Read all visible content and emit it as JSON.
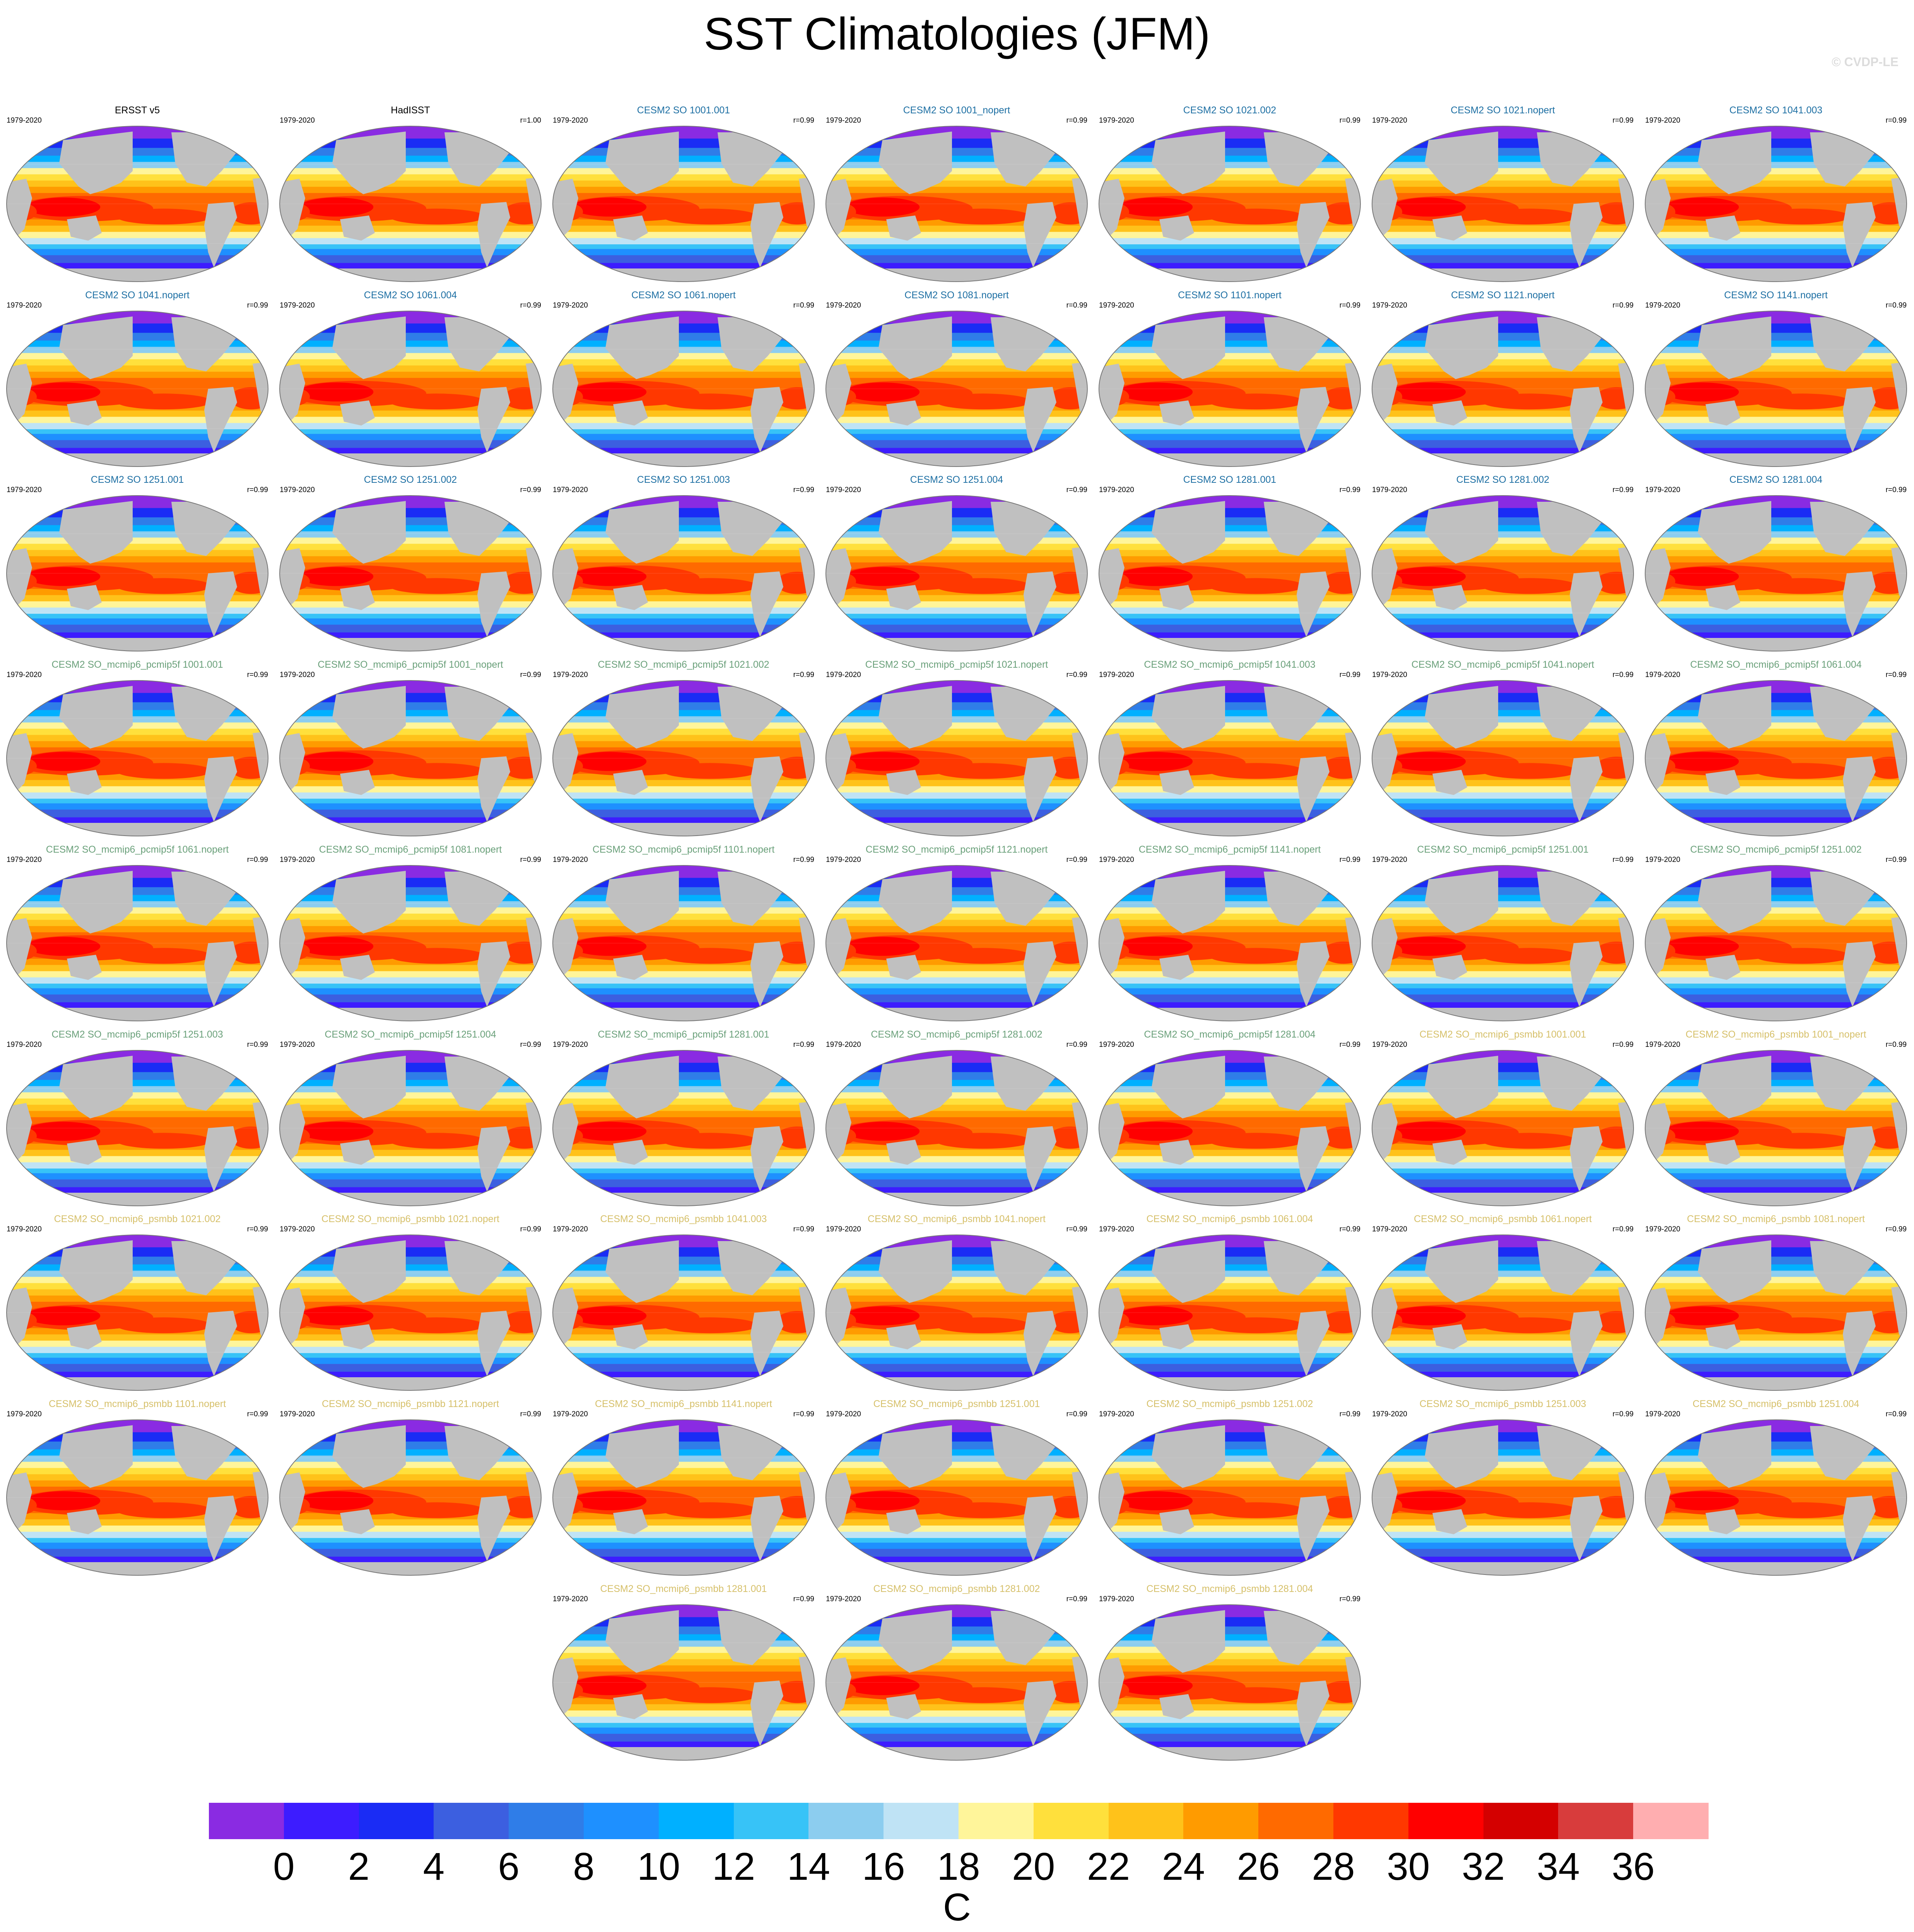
{
  "figure": {
    "title": "SST Climatologies (JFM)",
    "watermark": "© CVDP-LE"
  },
  "colors": {
    "land": "#c0c0c0",
    "obs_name": "#000000",
    "group1_name": "#1d6fa3",
    "group2_name": "#6aa07a",
    "group3_name": "#d6c06a"
  },
  "chart_data": {
    "type": "heatmap",
    "variable": "SST",
    "season": "JFM",
    "projection": "Robinson (global, Pacific-centered)",
    "panel_layout": "7 columns x 9 rows (last row 3 centered)",
    "period": "1979-2020",
    "colorbar": {
      "units": "C",
      "ticks": [
        0,
        2,
        4,
        6,
        8,
        10,
        12,
        14,
        16,
        18,
        20,
        22,
        24,
        26,
        28,
        30,
        32,
        34,
        36
      ],
      "colors": [
        "#8a2be2",
        "#3d1cff",
        "#1a2cf5",
        "#3c5fe0",
        "#2f7de8",
        "#1e90ff",
        "#00b0ff",
        "#37c3f7",
        "#8ccdef",
        "#bfe3f5",
        "#fff59a",
        "#ffe03c",
        "#ffc21a",
        "#ff9b00",
        "#ff6a00",
        "#ff3800",
        "#ff0000",
        "#d40000",
        "#d83c3c",
        "#ffaeb0"
      ]
    },
    "panels": [
      {
        "name": "ERSST v5",
        "period": "1979-2020",
        "r": "",
        "group": "obs"
      },
      {
        "name": "HadISST",
        "period": "1979-2020",
        "r": "r=1.00",
        "group": "obs"
      },
      {
        "name": "CESM2 SO 1001.001",
        "period": "1979-2020",
        "r": "r=0.99",
        "group": "g1"
      },
      {
        "name": "CESM2 SO 1001_nopert",
        "period": "1979-2020",
        "r": "r=0.99",
        "group": "g1"
      },
      {
        "name": "CESM2 SO 1021.002",
        "period": "1979-2020",
        "r": "r=0.99",
        "group": "g1"
      },
      {
        "name": "CESM2 SO 1021.nopert",
        "period": "1979-2020",
        "r": "r=0.99",
        "group": "g1"
      },
      {
        "name": "CESM2 SO 1041.003",
        "period": "1979-2020",
        "r": "r=0.99",
        "group": "g1"
      },
      {
        "name": "CESM2 SO 1041.nopert",
        "period": "1979-2020",
        "r": "r=0.99",
        "group": "g1"
      },
      {
        "name": "CESM2 SO 1061.004",
        "period": "1979-2020",
        "r": "r=0.99",
        "group": "g1"
      },
      {
        "name": "CESM2 SO 1061.nopert",
        "period": "1979-2020",
        "r": "r=0.99",
        "group": "g1"
      },
      {
        "name": "CESM2 SO 1081.nopert",
        "period": "1979-2020",
        "r": "r=0.99",
        "group": "g1"
      },
      {
        "name": "CESM2 SO 1101.nopert",
        "period": "1979-2020",
        "r": "r=0.99",
        "group": "g1"
      },
      {
        "name": "CESM2 SO 1121.nopert",
        "period": "1979-2020",
        "r": "r=0.99",
        "group": "g1"
      },
      {
        "name": "CESM2 SO 1141.nopert",
        "period": "1979-2020",
        "r": "r=0.99",
        "group": "g1"
      },
      {
        "name": "CESM2 SO 1251.001",
        "period": "1979-2020",
        "r": "r=0.99",
        "group": "g1"
      },
      {
        "name": "CESM2 SO 1251.002",
        "period": "1979-2020",
        "r": "r=0.99",
        "group": "g1"
      },
      {
        "name": "CESM2 SO 1251.003",
        "period": "1979-2020",
        "r": "r=0.99",
        "group": "g1"
      },
      {
        "name": "CESM2 SO 1251.004",
        "period": "1979-2020",
        "r": "r=0.99",
        "group": "g1"
      },
      {
        "name": "CESM2 SO 1281.001",
        "period": "1979-2020",
        "r": "r=0.99",
        "group": "g1"
      },
      {
        "name": "CESM2 SO 1281.002",
        "period": "1979-2020",
        "r": "r=0.99",
        "group": "g1"
      },
      {
        "name": "CESM2 SO 1281.004",
        "period": "1979-2020",
        "r": "r=0.99",
        "group": "g1"
      },
      {
        "name": "CESM2 SO_mcmip6_pcmip5f 1001.001",
        "period": "1979-2020",
        "r": "r=0.99",
        "group": "g2"
      },
      {
        "name": "CESM2 SO_mcmip6_pcmip5f 1001_nopert",
        "period": "1979-2020",
        "r": "r=0.99",
        "group": "g2"
      },
      {
        "name": "CESM2 SO_mcmip6_pcmip5f 1021.002",
        "period": "1979-2020",
        "r": "r=0.99",
        "group": "g2"
      },
      {
        "name": "CESM2 SO_mcmip6_pcmip5f 1021.nopert",
        "period": "1979-2020",
        "r": "r=0.99",
        "group": "g2"
      },
      {
        "name": "CESM2 SO_mcmip6_pcmip5f 1041.003",
        "period": "1979-2020",
        "r": "r=0.99",
        "group": "g2"
      },
      {
        "name": "CESM2 SO_mcmip6_pcmip5f 1041.nopert",
        "period": "1979-2020",
        "r": "r=0.99",
        "group": "g2"
      },
      {
        "name": "CESM2 SO_mcmip6_pcmip5f 1061.004",
        "period": "1979-2020",
        "r": "r=0.99",
        "group": "g2"
      },
      {
        "name": "CESM2 SO_mcmip6_pcmip5f 1061.nopert",
        "period": "1979-2020",
        "r": "r=0.99",
        "group": "g2"
      },
      {
        "name": "CESM2 SO_mcmip6_pcmip5f 1081.nopert",
        "period": "1979-2020",
        "r": "r=0.99",
        "group": "g2"
      },
      {
        "name": "CESM2 SO_mcmip6_pcmip5f 1101.nopert",
        "period": "1979-2020",
        "r": "r=0.99",
        "group": "g2"
      },
      {
        "name": "CESM2 SO_mcmip6_pcmip5f 1121.nopert",
        "period": "1979-2020",
        "r": "r=0.99",
        "group": "g2"
      },
      {
        "name": "CESM2 SO_mcmip6_pcmip5f 1141.nopert",
        "period": "1979-2020",
        "r": "r=0.99",
        "group": "g2"
      },
      {
        "name": "CESM2 SO_mcmip6_pcmip5f 1251.001",
        "period": "1979-2020",
        "r": "r=0.99",
        "group": "g2"
      },
      {
        "name": "CESM2 SO_mcmip6_pcmip5f 1251.002",
        "period": "1979-2020",
        "r": "r=0.99",
        "group": "g2"
      },
      {
        "name": "CESM2 SO_mcmip6_pcmip5f 1251.003",
        "period": "1979-2020",
        "r": "r=0.99",
        "group": "g2"
      },
      {
        "name": "CESM2 SO_mcmip6_pcmip5f 1251.004",
        "period": "1979-2020",
        "r": "r=0.99",
        "group": "g2"
      },
      {
        "name": "CESM2 SO_mcmip6_pcmip5f 1281.001",
        "period": "1979-2020",
        "r": "r=0.99",
        "group": "g2"
      },
      {
        "name": "CESM2 SO_mcmip6_pcmip5f 1281.002",
        "period": "1979-2020",
        "r": "r=0.99",
        "group": "g2"
      },
      {
        "name": "CESM2 SO_mcmip6_pcmip5f 1281.004",
        "period": "1979-2020",
        "r": "r=0.99",
        "group": "g2"
      },
      {
        "name": "CESM2 SO_mcmip6_psmbb 1001.001",
        "period": "1979-2020",
        "r": "r=0.99",
        "group": "g3"
      },
      {
        "name": "CESM2 SO_mcmip6_psmbb 1001_nopert",
        "period": "1979-2020",
        "r": "r=0.99",
        "group": "g3"
      },
      {
        "name": "CESM2 SO_mcmip6_psmbb 1021.002",
        "period": "1979-2020",
        "r": "r=0.99",
        "group": "g3"
      },
      {
        "name": "CESM2 SO_mcmip6_psmbb 1021.nopert",
        "period": "1979-2020",
        "r": "r=0.99",
        "group": "g3"
      },
      {
        "name": "CESM2 SO_mcmip6_psmbb 1041.003",
        "period": "1979-2020",
        "r": "r=0.99",
        "group": "g3"
      },
      {
        "name": "CESM2 SO_mcmip6_psmbb 1041.nopert",
        "period": "1979-2020",
        "r": "r=0.99",
        "group": "g3"
      },
      {
        "name": "CESM2 SO_mcmip6_psmbb 1061.004",
        "period": "1979-2020",
        "r": "r=0.99",
        "group": "g3"
      },
      {
        "name": "CESM2 SO_mcmip6_psmbb 1061.nopert",
        "period": "1979-2020",
        "r": "r=0.99",
        "group": "g3"
      },
      {
        "name": "CESM2 SO_mcmip6_psmbb 1081.nopert",
        "period": "1979-2020",
        "r": "r=0.99",
        "group": "g3"
      },
      {
        "name": "CESM2 SO_mcmip6_psmbb 1101.nopert",
        "period": "1979-2020",
        "r": "r=0.99",
        "group": "g3"
      },
      {
        "name": "CESM2 SO_mcmip6_psmbb 1121.nopert",
        "period": "1979-2020",
        "r": "r=0.99",
        "group": "g3"
      },
      {
        "name": "CESM2 SO_mcmip6_psmbb 1141.nopert",
        "period": "1979-2020",
        "r": "r=0.99",
        "group": "g3"
      },
      {
        "name": "CESM2 SO_mcmip6_psmbb 1251.001",
        "period": "1979-2020",
        "r": "r=0.99",
        "group": "g3"
      },
      {
        "name": "CESM2 SO_mcmip6_psmbb 1251.002",
        "period": "1979-2020",
        "r": "r=0.99",
        "group": "g3"
      },
      {
        "name": "CESM2 SO_mcmip6_psmbb 1251.003",
        "period": "1979-2020",
        "r": "r=0.99",
        "group": "g3"
      },
      {
        "name": "CESM2 SO_mcmip6_psmbb 1251.004",
        "period": "1979-2020",
        "r": "r=0.99",
        "group": "g3"
      },
      {
        "name": "CESM2 SO_mcmip6_psmbb 1281.001",
        "period": "1979-2020",
        "r": "r=0.99",
        "group": "g3"
      },
      {
        "name": "CESM2 SO_mcmip6_psmbb 1281.002",
        "period": "1979-2020",
        "r": "r=0.99",
        "group": "g3"
      },
      {
        "name": "CESM2 SO_mcmip6_psmbb 1281.004",
        "period": "1979-2020",
        "r": "r=0.99",
        "group": "g3"
      }
    ]
  }
}
